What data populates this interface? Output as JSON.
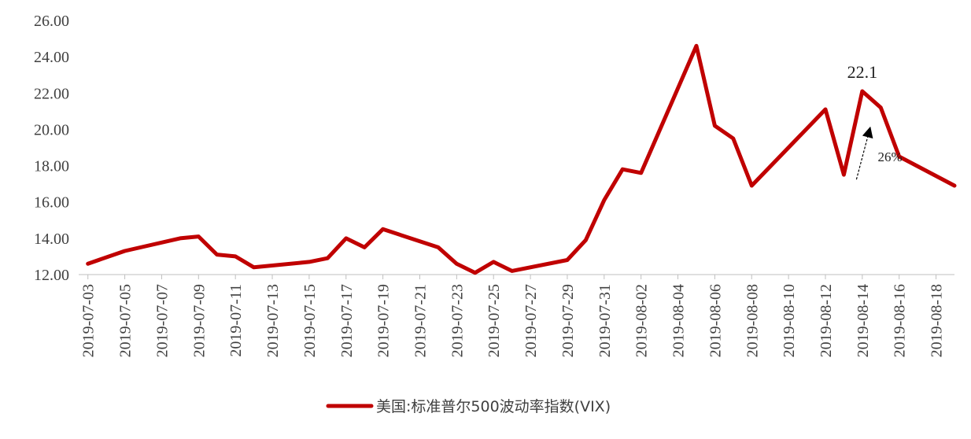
{
  "chart_data": {
    "type": "line",
    "x": [
      "2019-07-03",
      "2019-07-05",
      "2019-07-08",
      "2019-07-09",
      "2019-07-10",
      "2019-07-11",
      "2019-07-12",
      "2019-07-15",
      "2019-07-16",
      "2019-07-17",
      "2019-07-18",
      "2019-07-19",
      "2019-07-22",
      "2019-07-23",
      "2019-07-24",
      "2019-07-25",
      "2019-07-26",
      "2019-07-29",
      "2019-07-30",
      "2019-07-31",
      "2019-08-01",
      "2019-08-02",
      "2019-08-05",
      "2019-08-06",
      "2019-08-07",
      "2019-08-08",
      "2019-08-12",
      "2019-08-13",
      "2019-08-14",
      "2019-08-15",
      "2019-08-16",
      "2019-08-19"
    ],
    "series": [
      {
        "name": "美国:标准普尔500波动率指数(VIX)",
        "color": "#c00000",
        "values": [
          12.6,
          13.3,
          14.0,
          14.1,
          13.1,
          13.0,
          12.4,
          12.7,
          12.9,
          14.0,
          13.5,
          14.5,
          13.5,
          12.6,
          12.1,
          12.7,
          12.2,
          12.8,
          13.9,
          16.1,
          17.8,
          17.6,
          24.6,
          20.2,
          19.5,
          16.9,
          21.1,
          17.5,
          22.1,
          21.2,
          18.5,
          16.9
        ]
      }
    ],
    "x_ticks": [
      "2019-07-03",
      "2019-07-05",
      "2019-07-07",
      "2019-07-09",
      "2019-07-11",
      "2019-07-13",
      "2019-07-15",
      "2019-07-17",
      "2019-07-19",
      "2019-07-21",
      "2019-07-23",
      "2019-07-25",
      "2019-07-27",
      "2019-07-29",
      "2019-07-31",
      "2019-08-02",
      "2019-08-04",
      "2019-08-06",
      "2019-08-08",
      "2019-08-10",
      "2019-08-12",
      "2019-08-14",
      "2019-08-16",
      "2019-08-18"
    ],
    "y_ticks": [
      "12.00",
      "14.00",
      "16.00",
      "18.00",
      "20.00",
      "22.00",
      "24.00",
      "26.00"
    ],
    "ylim": [
      12,
      26
    ],
    "grid": false,
    "legend_position": "bottom",
    "annotations": [
      {
        "text": "22.1",
        "x": "2019-08-14",
        "y": 22.1
      },
      {
        "text": "26%",
        "x_from": "2019-08-13",
        "y_from": 17.5,
        "x_to": "2019-08-14",
        "y_to": 20.1
      }
    ]
  }
}
